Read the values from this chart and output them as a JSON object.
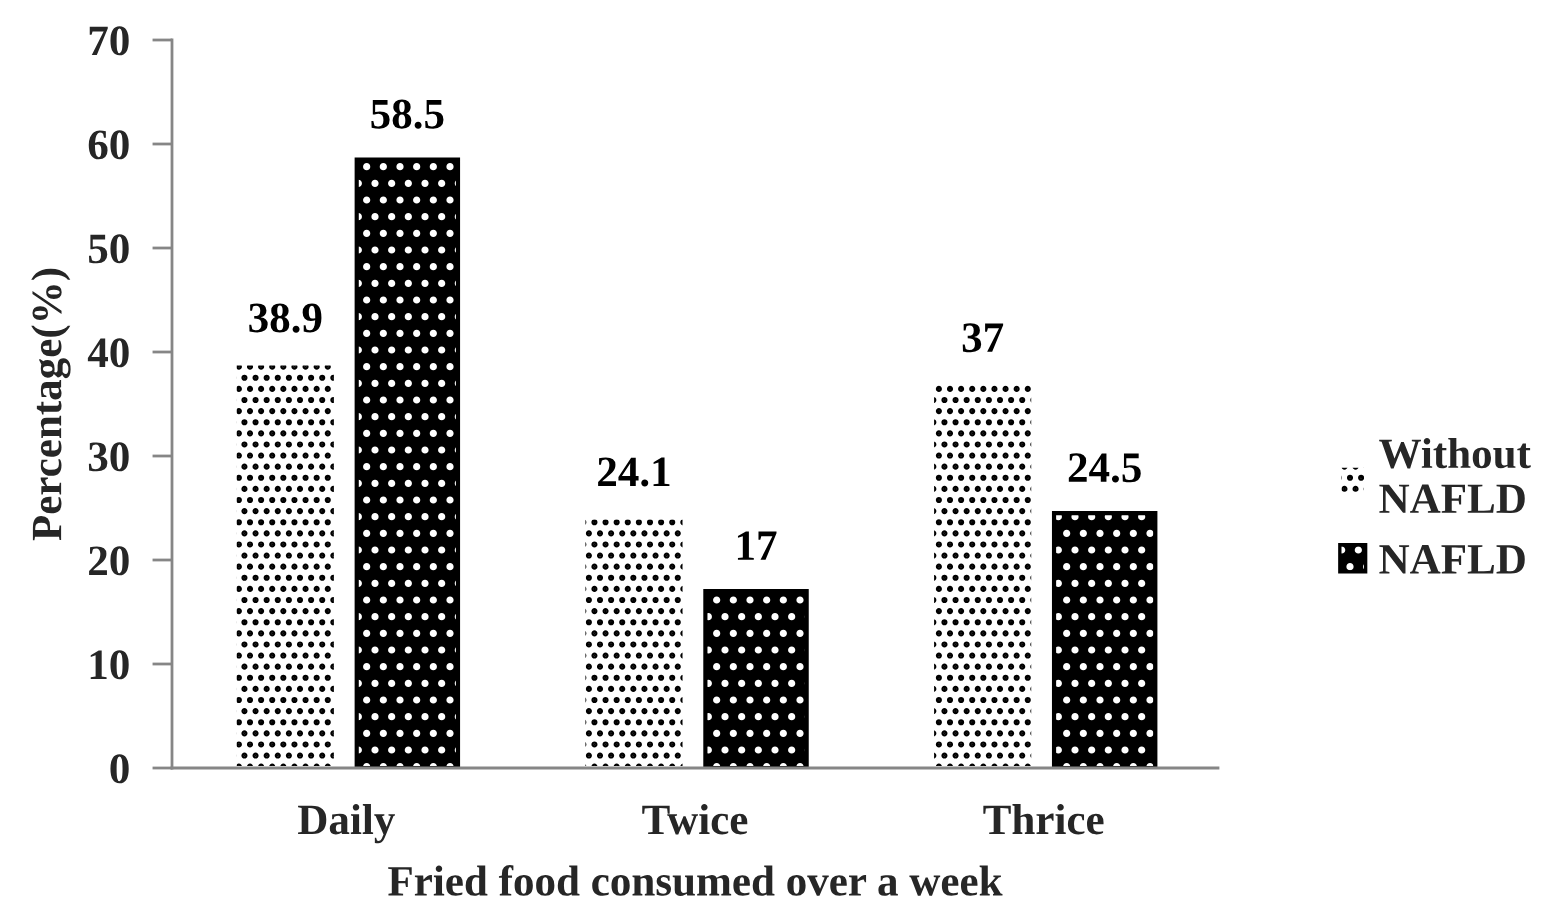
{
  "chart_data": {
    "type": "bar",
    "xlabel": "Fried food consumed over a week",
    "ylabel": "Percentage(%)",
    "categories": [
      "Daily",
      "Twice",
      "Thrice"
    ],
    "series": [
      {
        "name": "Without NAFLD",
        "color": "#ffffff",
        "values": [
          38.9,
          24.1,
          37
        ]
      },
      {
        "name": "NAFLD",
        "color": "#000000",
        "values": [
          58.5,
          17,
          24.5
        ]
      }
    ],
    "ylim": [
      0,
      70
    ],
    "yticks": [
      0,
      10,
      20,
      30,
      40,
      50,
      60,
      70
    ],
    "data_labels": true,
    "legend": "right"
  }
}
